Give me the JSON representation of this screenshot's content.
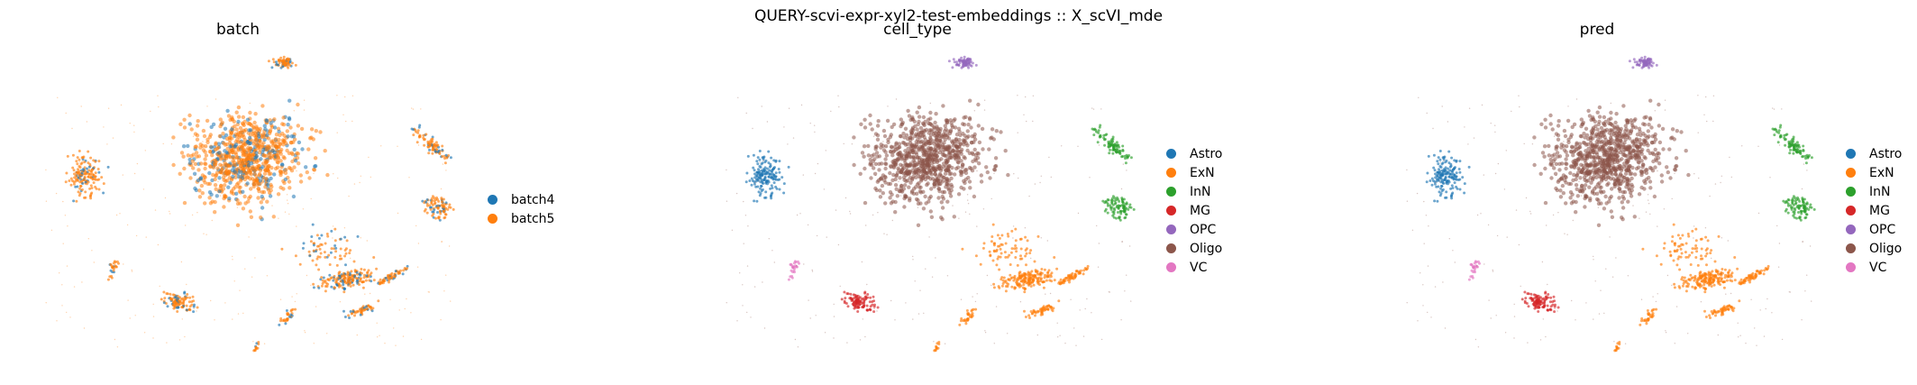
{
  "suptitle": "QUERY-scvi-expr-xyl2-test-embeddings :: X_scVI_mde",
  "chart_data": [
    {
      "type": "scatter",
      "title": "batch",
      "xlabel": "",
      "ylabel": "",
      "grid": false,
      "legend_position": "right",
      "series": [
        {
          "name": "batch4",
          "color": "#1f77b4"
        },
        {
          "name": "batch5",
          "color": "#ff7f0e"
        }
      ]
    },
    {
      "type": "scatter",
      "title": "cell_type",
      "xlabel": "",
      "ylabel": "",
      "grid": false,
      "legend_position": "right",
      "series": [
        {
          "name": "Astro",
          "color": "#1f77b4"
        },
        {
          "name": "ExN",
          "color": "#ff7f0e"
        },
        {
          "name": "InN",
          "color": "#2ca02c"
        },
        {
          "name": "MG",
          "color": "#d62728"
        },
        {
          "name": "OPC",
          "color": "#9467bd"
        },
        {
          "name": "Oligo",
          "color": "#8c564b"
        },
        {
          "name": "VC",
          "color": "#e377c2"
        }
      ]
    },
    {
      "type": "scatter",
      "title": "pred",
      "xlabel": "",
      "ylabel": "",
      "grid": false,
      "legend_position": "right",
      "series": [
        {
          "name": "Astro",
          "color": "#1f77b4"
        },
        {
          "name": "ExN",
          "color": "#ff7f0e"
        },
        {
          "name": "InN",
          "color": "#2ca02c"
        },
        {
          "name": "MG",
          "color": "#d62728"
        },
        {
          "name": "OPC",
          "color": "#9467bd"
        },
        {
          "name": "Oligo",
          "color": "#8c564b"
        },
        {
          "name": "VC",
          "color": "#e377c2"
        }
      ]
    }
  ]
}
